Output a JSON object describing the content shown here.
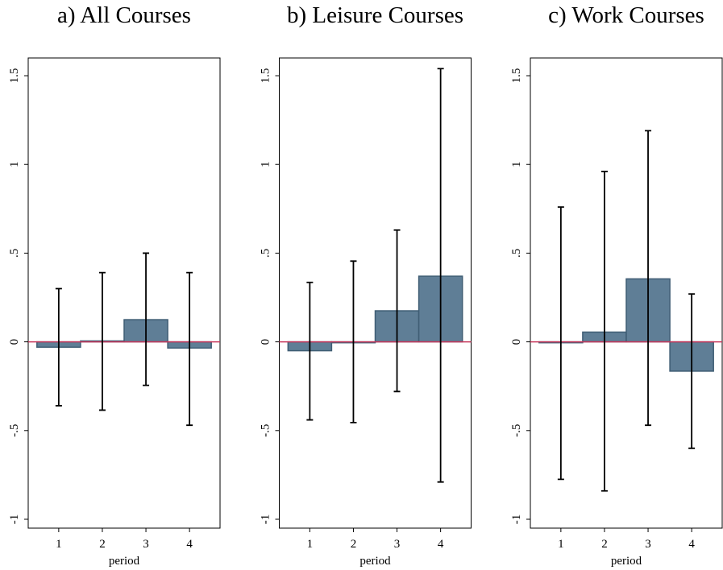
{
  "chart_data": [
    {
      "type": "bar",
      "title": "a) All Courses",
      "x_label": "period",
      "x": [
        1,
        2,
        3,
        4
      ],
      "values": [
        -0.03,
        0.005,
        0.125,
        -0.035
      ],
      "ci_low": [
        -0.36,
        -0.385,
        -0.245,
        -0.47
      ],
      "ci_high": [
        0.3,
        0.39,
        0.5,
        0.39
      ],
      "color": "#5f7e96",
      "edge_color": "#3f5d74",
      "zero_line_color": "#c8385c",
      "xlim": [
        0.3,
        4.7
      ],
      "xticks": [
        1,
        2,
        3,
        4
      ],
      "ylim": [
        -1.05,
        1.6
      ],
      "yticks": [
        -1,
        {
          "value": -0.5,
          "label": "-.5"
        },
        0,
        {
          "value": 0.5,
          "label": ".5"
        },
        1,
        1.5
      ]
    },
    {
      "type": "bar",
      "title": "b) Leisure Courses",
      "x_label": "period",
      "x": [
        1,
        2,
        3,
        4
      ],
      "values": [
        -0.05,
        -0.005,
        0.175,
        0.37
      ],
      "ci_low": [
        -0.44,
        -0.455,
        -0.28,
        -0.79
      ],
      "ci_high": [
        0.335,
        0.455,
        0.63,
        1.54
      ],
      "color": "#5f7e96",
      "edge_color": "#3f5d74",
      "zero_line_color": "#c8385c",
      "xlim": [
        0.3,
        4.7
      ],
      "xticks": [
        1,
        2,
        3,
        4
      ],
      "ylim": [
        -1.05,
        1.6
      ],
      "yticks": [
        -1,
        {
          "value": -0.5,
          "label": "-.5"
        },
        0,
        {
          "value": 0.5,
          "label": ".5"
        },
        1,
        1.5
      ]
    },
    {
      "type": "bar",
      "title": "c) Work Courses",
      "x_label": "period",
      "x": [
        1,
        2,
        3,
        4
      ],
      "values": [
        -0.005,
        0.055,
        0.355,
        -0.165
      ],
      "ci_low": [
        -0.775,
        -0.84,
        -0.47,
        -0.6
      ],
      "ci_high": [
        0.76,
        0.96,
        1.19,
        0.27
      ],
      "color": "#5f7e96",
      "edge_color": "#3f5d74",
      "zero_line_color": "#c8385c",
      "xlim": [
        0.3,
        4.7
      ],
      "xticks": [
        1,
        2,
        3,
        4
      ],
      "ylim": [
        -1.05,
        1.6
      ],
      "yticks": [
        -1,
        {
          "value": -0.5,
          "label": "-.5"
        },
        0,
        {
          "value": 0.5,
          "label": ".5"
        },
        1,
        1.5
      ]
    }
  ]
}
